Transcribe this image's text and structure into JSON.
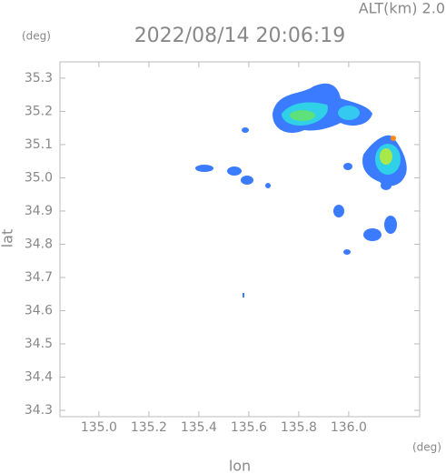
{
  "chart_data": {
    "type": "map",
    "title": "2022/08/14 20:06:19",
    "altitude_label": "ALT(km) 2.0",
    "y_unit": "(deg)",
    "x_unit": "(deg)",
    "xlabel": "lon",
    "ylabel": "lat",
    "xlim": [
      134.844,
      136.284
    ],
    "ylim": [
      34.281,
      35.349
    ],
    "xticks": [
      {
        "value": 135,
        "label": "135.0"
      },
      135.2,
      135.4,
      135.6,
      135.8,
      {
        "value": 136,
        "label": "136.0"
      }
    ],
    "yticks": [
      34.3,
      34.4,
      34.5,
      34.6,
      34.7,
      34.8,
      34.9,
      {
        "value": 35,
        "label": "35.0"
      },
      35.1,
      35.2,
      35.3
    ]
  }
}
